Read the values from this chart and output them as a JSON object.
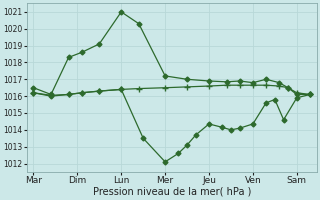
{
  "background_color": "#cce8e8",
  "grid_color": "#b8d8d8",
  "line_color": "#2d6a2d",
  "x_labels": [
    "Mar",
    "Dim",
    "Lun",
    "Mer",
    "Jeu",
    "Ven",
    "Sam"
  ],
  "ylim": [
    1011.5,
    1021.5
  ],
  "yticks": [
    1012,
    1013,
    1014,
    1015,
    1016,
    1017,
    1018,
    1019,
    1020,
    1021
  ],
  "xlabel": "Pression niveau de la mer( hPa )",
  "line1_x": [
    0.0,
    0.4,
    0.8,
    1.1,
    1.5,
    2.0,
    2.4,
    3.0,
    3.5,
    4.0,
    4.4,
    4.7,
    5.0,
    5.3,
    5.6,
    5.8,
    6.0,
    6.3
  ],
  "line1_y": [
    1016.5,
    1016.1,
    1018.3,
    1018.6,
    1019.1,
    1021.0,
    1020.3,
    1017.2,
    1017.0,
    1016.9,
    1016.85,
    1016.9,
    1016.8,
    1017.0,
    1016.8,
    1016.5,
    1016.1,
    1016.1
  ],
  "line2_x": [
    0.0,
    0.4,
    0.8,
    1.1,
    1.5,
    2.0,
    2.4,
    3.0,
    3.5,
    4.0,
    4.4,
    4.7,
    5.0,
    5.3,
    5.6,
    5.8,
    6.0,
    6.3
  ],
  "line2_y": [
    1016.2,
    1016.05,
    1016.1,
    1016.2,
    1016.3,
    1016.4,
    1016.45,
    1016.5,
    1016.55,
    1016.6,
    1016.65,
    1016.65,
    1016.65,
    1016.65,
    1016.6,
    1016.5,
    1016.2,
    1016.1
  ],
  "line3_x": [
    0.0,
    0.4,
    0.8,
    1.1,
    1.5,
    2.0,
    2.5,
    3.0,
    3.3,
    3.5,
    3.7,
    4.0,
    4.3,
    4.5,
    4.7,
    5.0,
    5.3,
    5.5,
    5.7,
    6.0,
    6.3
  ],
  "line3_y": [
    1016.2,
    1016.0,
    1016.1,
    1016.2,
    1016.3,
    1016.4,
    1013.5,
    1012.1,
    1012.6,
    1013.1,
    1013.7,
    1014.35,
    1014.15,
    1014.0,
    1014.1,
    1014.35,
    1015.6,
    1015.8,
    1014.6,
    1015.9,
    1016.1
  ],
  "line1_markers_x": [
    0.0,
    0.4,
    0.8,
    1.1,
    1.5,
    2.0,
    2.4,
    3.0,
    3.5,
    4.0,
    4.4,
    5.0,
    5.3,
    5.6,
    5.8,
    6.0,
    6.3
  ],
  "line1_markers_y": [
    1016.5,
    1016.1,
    1018.3,
    1018.6,
    1019.1,
    1021.0,
    1020.3,
    1017.2,
    1017.0,
    1016.9,
    1016.85,
    1016.8,
    1017.0,
    1016.8,
    1016.5,
    1016.1,
    1016.1
  ],
  "line3_markers_x": [
    0.0,
    0.4,
    1.5,
    2.5,
    3.0,
    3.3,
    3.5,
    3.7,
    4.0,
    4.3,
    4.5,
    4.7,
    5.0,
    5.3,
    5.5,
    5.7,
    6.0,
    6.3
  ],
  "line3_markers_y": [
    1016.2,
    1016.0,
    1016.3,
    1013.5,
    1012.1,
    1012.6,
    1013.1,
    1013.7,
    1014.35,
    1014.15,
    1014.0,
    1014.1,
    1014.35,
    1015.6,
    1015.8,
    1014.6,
    1015.9,
    1016.1
  ]
}
